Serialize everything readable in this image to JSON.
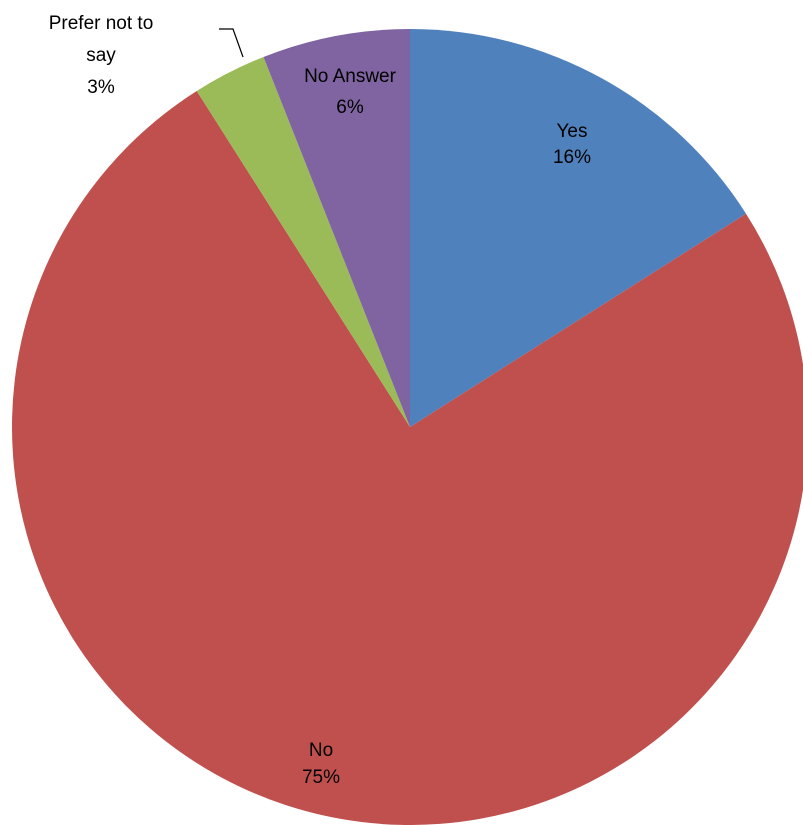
{
  "chart_data": {
    "type": "pie",
    "title": "",
    "start_angle_deg": 0,
    "direction": "clockwise",
    "slices": [
      {
        "label": "Yes",
        "value": 16,
        "percent_label": "16%",
        "color": "#4F81BD"
      },
      {
        "label": "No",
        "value": 75,
        "percent_label": "75%",
        "color": "#C0504D"
      },
      {
        "label": "Prefer not to say",
        "label_lines": [
          "Prefer not to",
          "say"
        ],
        "value": 3,
        "percent_label": "3%",
        "color": "#9BBB59"
      },
      {
        "label": "No Answer",
        "value": 6,
        "percent_label": "6%",
        "color": "#8064A2"
      }
    ],
    "legend": "none",
    "data_labels": "category and percentage"
  }
}
